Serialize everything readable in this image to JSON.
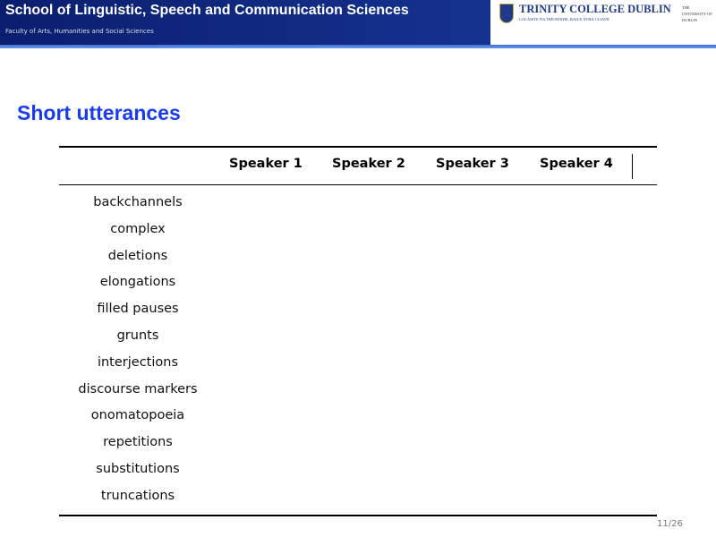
{
  "header": {
    "title": "School of Linguistic, Speech and Communication Sciences",
    "subtitle": "Faculty of Arts, Humanities and Social Sciences",
    "logo": {
      "name": "TRINITY COLLEGE DUBLIN",
      "irish": "COLÁISTE NA TRÍONÓIDE, BAILE ÁTHA CLIATH",
      "university": "THE UNIVERSITY OF DUBLIN"
    }
  },
  "slide": {
    "title": "Short utterances",
    "table": {
      "columns": [
        "Speaker 1",
        "Speaker 2",
        "Speaker 3",
        "Speaker 4"
      ],
      "rows": [
        "backchannels",
        "complex",
        "deletions",
        "elongations",
        "filled pauses",
        "grunts",
        "interjections",
        "discourse markers",
        "onomatopoeia",
        "repetitions",
        "substitutions",
        "truncations"
      ]
    }
  },
  "page": "11/26"
}
